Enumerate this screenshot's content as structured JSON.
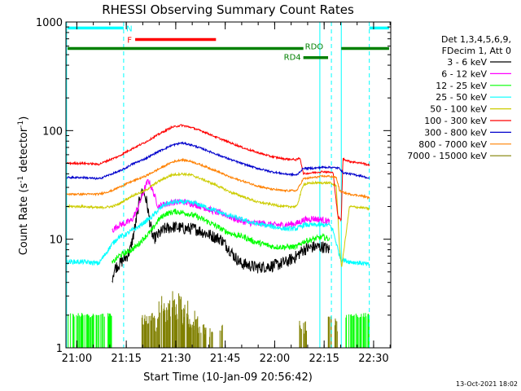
{
  "chart_data": {
    "type": "line",
    "title": "RHESSI Observing Summary Count Rates",
    "xlabel": "Start Time (10-Jan-09 20:56:42)",
    "ylabel_main": "Count Rate (s",
    "ylabel_sup1": "-1",
    "ylabel_mid": " detector",
    "ylabel_sup2": "-1",
    "ylabel_end": ")",
    "x_units": "minutes since 20:56:42",
    "xlim": [
      0,
      98.5
    ],
    "ylim": [
      1,
      1000
    ],
    "yscale": "log",
    "x_ticks": [
      {
        "label": "21:00",
        "x": 3.3
      },
      {
        "label": "21:15",
        "x": 18.3
      },
      {
        "label": "21:30",
        "x": 33.3
      },
      {
        "label": "21:45",
        "x": 48.3
      },
      {
        "label": "22:00",
        "x": 63.3
      },
      {
        "label": "22:15",
        "x": 78.3
      },
      {
        "label": "22:30",
        "x": 93.3
      }
    ],
    "y_ticks": [
      {
        "label": "1",
        "y": 1
      },
      {
        "label": "10",
        "y": 10
      },
      {
        "label": "100",
        "y": 100
      },
      {
        "label": "1000",
        "y": 1000
      }
    ],
    "legend_header": [
      "Det 1,3,4,5,6,9,",
      "FDecim 1, Att 0"
    ],
    "timestamp": "13-Oct-2021 18:02",
    "state_bars": [
      {
        "label": "N",
        "color": "#00ffff",
        "y": 880,
        "segments": [
          [
            0.5,
            17.5
          ],
          [
            92,
            98
          ]
        ]
      },
      {
        "label": "F",
        "color": "#ff0000",
        "y": 690,
        "segments": [
          [
            21,
            45.5
          ]
        ]
      },
      {
        "label": "RDO",
        "color": "#008000",
        "y": 570,
        "segments": [
          [
            0.5,
            72
          ],
          [
            83.5,
            98
          ]
        ]
      },
      {
        "label": "RD4",
        "color": "#008000",
        "y": 470,
        "segments": [
          [
            72,
            79.5
          ]
        ]
      }
    ],
    "vlines": [
      {
        "x": 0.2,
        "color": "#00ffff",
        "style": "solid"
      },
      {
        "x": 17.5,
        "color": "#00ffff",
        "style": "dashed"
      },
      {
        "x": 77,
        "color": "#00ffff",
        "style": "solid"
      },
      {
        "x": 80.5,
        "color": "#00ffff",
        "style": "dashed"
      },
      {
        "x": 83.5,
        "color": "#00ffff",
        "style": "solid"
      },
      {
        "x": 92,
        "color": "#00ffff",
        "style": "dashed"
      }
    ],
    "series": [
      {
        "name": "3 - 6 keV",
        "color": "#000000",
        "noise": 0.13,
        "x": [
          14,
          15,
          16.5,
          17.5,
          18.5,
          19.5,
          20.5,
          21.5,
          22.5,
          23.5,
          24.5,
          25.5,
          26.5,
          28,
          30,
          33,
          36,
          39,
          42,
          45,
          47,
          49,
          51,
          53,
          55,
          58,
          61,
          64,
          67,
          70,
          72,
          75,
          78,
          80
        ],
        "y": [
          4.5,
          5.5,
          6,
          6.5,
          7,
          8,
          11,
          16,
          25,
          28,
          22,
          14,
          10,
          11,
          12.5,
          13,
          12.5,
          12.5,
          11.5,
          10.5,
          10,
          8.5,
          7,
          6,
          5.8,
          5.5,
          5.6,
          5.8,
          6.2,
          7,
          8,
          8.5,
          8.5,
          8
        ]
      },
      {
        "name": "6 - 12 keV",
        "color": "#ff00ff",
        "noise": 0.07,
        "x": [
          14,
          16,
          18,
          20,
          22,
          24,
          25,
          26.5,
          28,
          30,
          33,
          36,
          39,
          42,
          45,
          48,
          51,
          54,
          57,
          60,
          63,
          66,
          70,
          72,
          75,
          78,
          80
        ],
        "y": [
          12,
          13.5,
          14,
          15,
          20,
          30,
          35,
          27,
          20,
          21,
          22,
          22,
          21,
          19.5,
          18,
          17,
          15.5,
          14.5,
          14,
          14,
          13.5,
          13.5,
          14,
          15,
          15.5,
          15,
          14.5
        ]
      },
      {
        "name": "12 - 25 keV",
        "color": "#00ff00",
        "noise": 0.06,
        "x": [
          14,
          16,
          18,
          20,
          22,
          24,
          26,
          28,
          30,
          33,
          36,
          39,
          42,
          45,
          48,
          51,
          54,
          57,
          60,
          63,
          66,
          70,
          72,
          75,
          78,
          80
        ],
        "y": [
          6,
          7,
          7.5,
          8,
          9,
          10.5,
          12,
          15,
          17,
          18,
          17.5,
          16.5,
          15,
          13.5,
          12,
          11,
          10.5,
          9.5,
          9,
          8.5,
          8.5,
          8.5,
          9.5,
          10,
          10.5,
          10
        ]
      },
      {
        "name": "25 - 50 keV",
        "color": "#00ffff",
        "noise": 0.05,
        "x": [
          0.3,
          5,
          10,
          14,
          16,
          18,
          20,
          22,
          24,
          26,
          28,
          30,
          33,
          36,
          39,
          42,
          45,
          48,
          51,
          54,
          57,
          60,
          63,
          66,
          70,
          72,
          75,
          78,
          80,
          81,
          83,
          83.6,
          86,
          90,
          92
        ],
        "y": [
          6.2,
          6.2,
          6,
          9,
          10.5,
          11,
          12,
          13,
          14.5,
          16,
          18.5,
          21,
          22,
          22,
          21.5,
          20,
          18.5,
          17,
          16,
          15,
          14,
          13.5,
          13,
          12.5,
          12.5,
          13.5,
          13.5,
          13.5,
          13.5,
          12,
          7,
          6.5,
          6.2,
          6,
          5.8
        ]
      },
      {
        "name": "50 - 100 keV",
        "color": "#cccc00",
        "noise": 0.025,
        "x": [
          0.3,
          5,
          10,
          14,
          16,
          18,
          20,
          24,
          28,
          32,
          35,
          38,
          42,
          46,
          50,
          54,
          58,
          62,
          66,
          70,
          72,
          75,
          78,
          80,
          82,
          83,
          83.6,
          86,
          90,
          92
        ],
        "y": [
          20,
          20,
          19.5,
          20,
          21,
          23,
          25,
          28,
          34,
          39,
          40,
          39,
          35,
          31,
          27,
          24.5,
          22,
          21,
          20,
          20,
          32,
          33,
          33,
          33,
          31,
          8,
          5.5,
          20,
          19.5,
          19
        ]
      },
      {
        "name": "100 - 300 keV",
        "color": "#ff0000",
        "noise": 0.02,
        "x": [
          0.3,
          5,
          10,
          14,
          16,
          18,
          20,
          24,
          28,
          32,
          35,
          38,
          42,
          46,
          50,
          54,
          58,
          62,
          66,
          70,
          71,
          72,
          75,
          78,
          81,
          82.5,
          83.5,
          84,
          86,
          90,
          92
        ],
        "y": [
          50,
          50,
          49,
          55,
          58,
          63,
          68,
          78,
          92,
          107,
          112,
          107,
          97,
          86,
          77,
          69,
          63,
          58,
          55,
          54,
          56,
          40,
          41,
          42,
          41,
          16,
          15,
          55,
          52,
          50,
          48
        ]
      },
      {
        "name": "300 - 800 keV",
        "color": "#0000cc",
        "noise": 0.02,
        "x": [
          0.3,
          5,
          10,
          14,
          16,
          18,
          20,
          24,
          28,
          32,
          35,
          38,
          42,
          46,
          50,
          54,
          58,
          62,
          66,
          70,
          72,
          75,
          78,
          80,
          83,
          84,
          86,
          90,
          92
        ],
        "y": [
          37,
          37,
          36,
          40,
          42,
          45,
          49,
          55,
          64,
          73,
          77,
          74,
          67,
          60,
          54,
          49,
          45,
          42,
          40,
          39,
          45,
          45,
          46,
          46,
          45,
          41,
          40,
          38,
          36
        ]
      },
      {
        "name": "800 - 7000 keV",
        "color": "#ff8000",
        "noise": 0.02,
        "x": [
          0.3,
          5,
          10,
          14,
          16,
          18,
          20,
          24,
          28,
          32,
          35,
          38,
          42,
          46,
          50,
          54,
          58,
          62,
          66,
          70,
          72,
          75,
          78,
          80,
          82,
          83,
          84,
          86,
          90,
          92
        ],
        "y": [
          26,
          26,
          26,
          28,
          30,
          32,
          34,
          38,
          44,
          51,
          54,
          52,
          47,
          42,
          37,
          34,
          31,
          29,
          28,
          28,
          36,
          37,
          38,
          38,
          37,
          28,
          27,
          26,
          25,
          24
        ]
      }
    ],
    "olive_series": {
      "name": "7000 - 15000 keV",
      "color": "#808000",
      "bars": [
        [
          23.5,
          2.1
        ],
        [
          24.5,
          1.9
        ],
        [
          25.5,
          2.3
        ],
        [
          26.5,
          2.0
        ],
        [
          27.5,
          1.8
        ],
        [
          28.5,
          2.6
        ],
        [
          29.5,
          3.0
        ],
        [
          30.5,
          2.4
        ],
        [
          31.5,
          2.8
        ],
        [
          32.5,
          3.2
        ],
        [
          33.5,
          2.5
        ],
        [
          34.5,
          3.0
        ],
        [
          35.5,
          2.2
        ],
        [
          36.5,
          2.7
        ],
        [
          37.5,
          2.0
        ],
        [
          38.5,
          1.8
        ],
        [
          39.5,
          2.3
        ],
        [
          40.5,
          1.7
        ],
        [
          42,
          1.6
        ],
        [
          44,
          1.5
        ],
        [
          47,
          1.6
        ],
        [
          71,
          1.9
        ],
        [
          72.5,
          1.7
        ],
        [
          80,
          2.0
        ],
        [
          82,
          1.8
        ]
      ]
    },
    "green_low_bars": {
      "color": "#00ff00",
      "ranges": [
        [
          0.5,
          14
        ],
        [
          84,
          92
        ]
      ],
      "height": 2.0
    }
  }
}
